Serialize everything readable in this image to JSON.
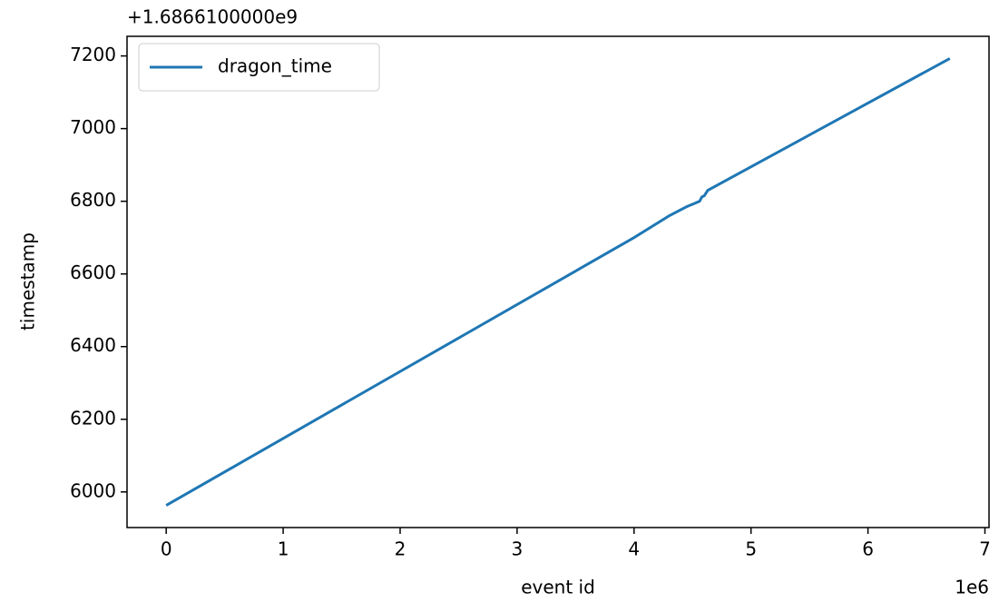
{
  "chart_data": {
    "type": "line",
    "x_label": "event id",
    "y_label": "timestamp",
    "x_offset_label": "1e6",
    "y_offset_label": "+1.6866100000e9",
    "x": [
      0,
      4.0,
      4.3,
      4.45,
      4.56,
      4.58,
      4.6,
      4.63,
      6.7
    ],
    "series": [
      {
        "name": "dragon_time",
        "color": "#1f77b4",
        "values": [
          5963,
          6700,
          6760,
          6785,
          6800,
          6812,
          6815,
          6830,
          7193
        ]
      }
    ],
    "xlim": [
      -0.335,
      7.035
    ],
    "xticks": [
      0,
      1,
      2,
      3,
      4,
      5,
      6,
      7
    ],
    "ylim": [
      5902,
      7254
    ],
    "yticks": [
      6000,
      6200,
      6400,
      6600,
      6800,
      7000,
      7200
    ],
    "grid": false,
    "legend": "upper left"
  }
}
